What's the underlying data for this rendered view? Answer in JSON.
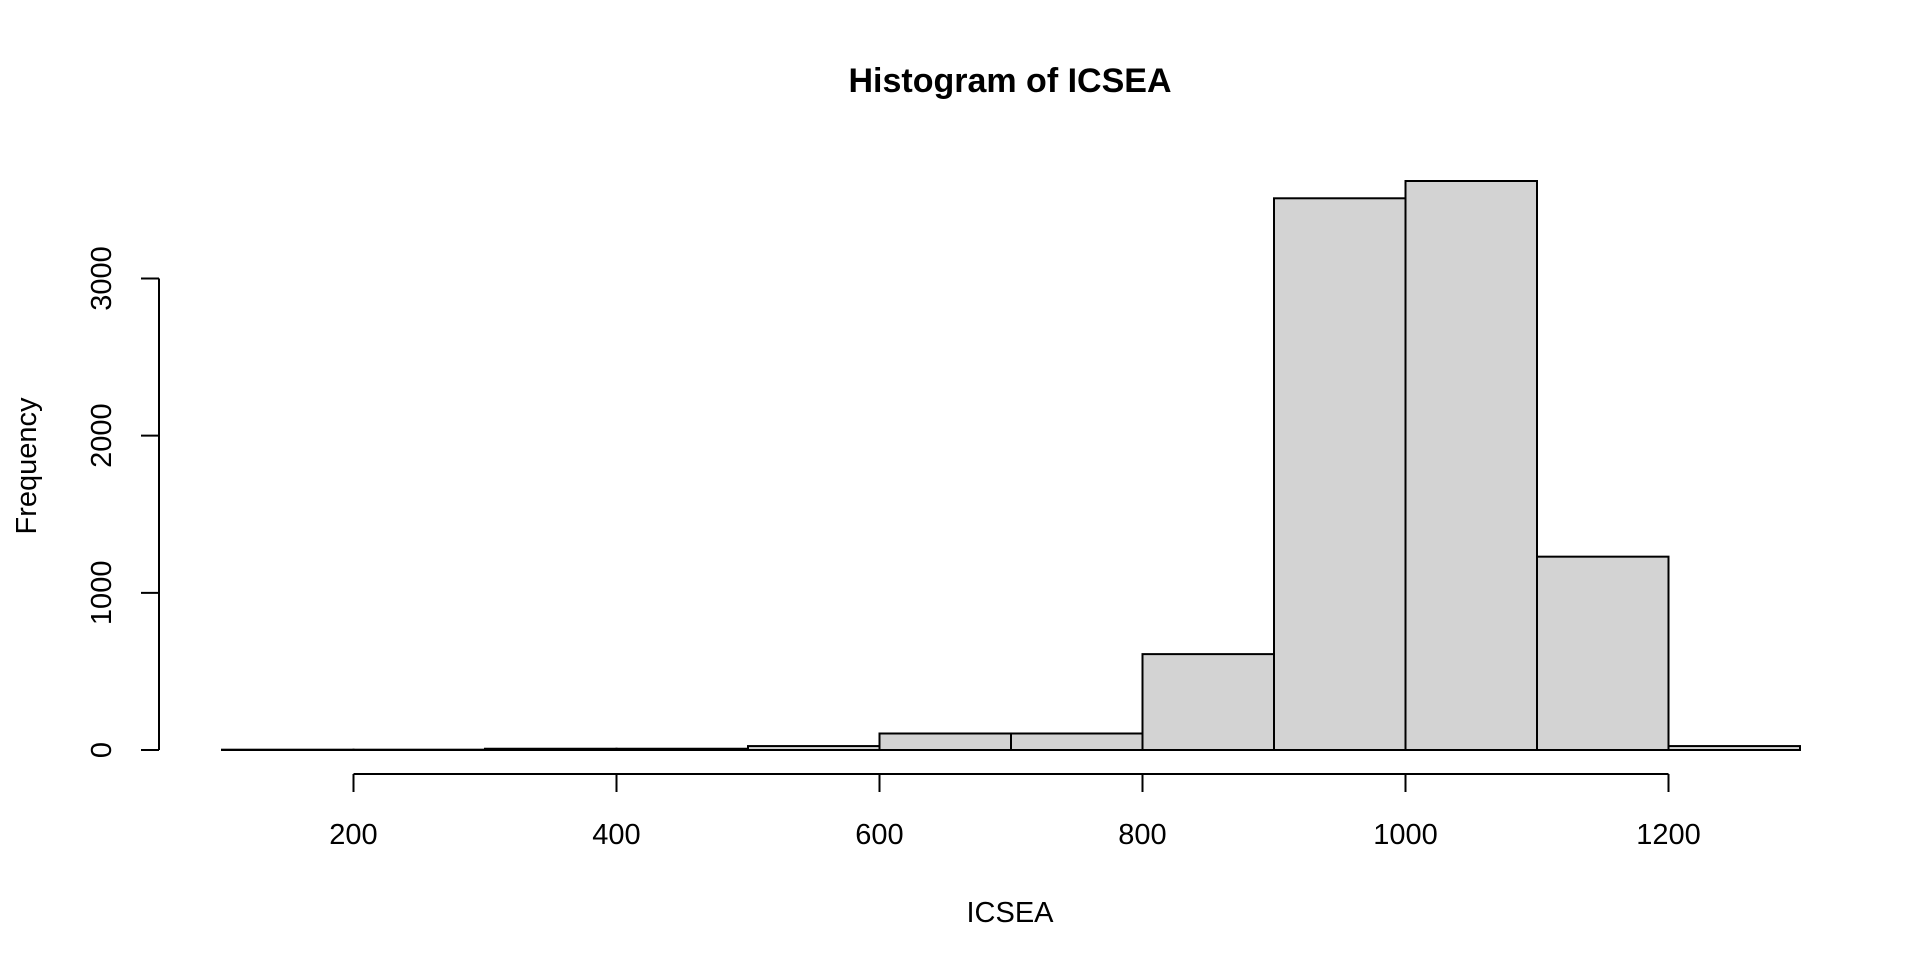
{
  "chart_data": {
    "type": "bar",
    "title": "Histogram of ICSEA",
    "xlabel": "ICSEA",
    "ylabel": "Frequency",
    "bin_edges": [
      100,
      200,
      300,
      400,
      500,
      600,
      700,
      800,
      900,
      1000,
      1100,
      1200,
      1300
    ],
    "values": [
      2,
      2,
      8,
      8,
      25,
      105,
      105,
      610,
      3510,
      3620,
      1230,
      25
    ],
    "xlim": [
      100,
      1300
    ],
    "ylim": [
      0,
      3620
    ],
    "x_ticks": [
      200,
      400,
      600,
      800,
      1000,
      1200
    ],
    "x_tick_labels": [
      "200",
      "400",
      "600",
      "800",
      "1000",
      "1200"
    ],
    "y_ticks": [
      0,
      1000,
      2000,
      3000
    ],
    "y_tick_labels": [
      "0",
      "1000",
      "2000",
      "3000"
    ],
    "bar_fill": "#d3d3d3",
    "bar_stroke": "#000000",
    "grid": false,
    "legend": "none"
  }
}
